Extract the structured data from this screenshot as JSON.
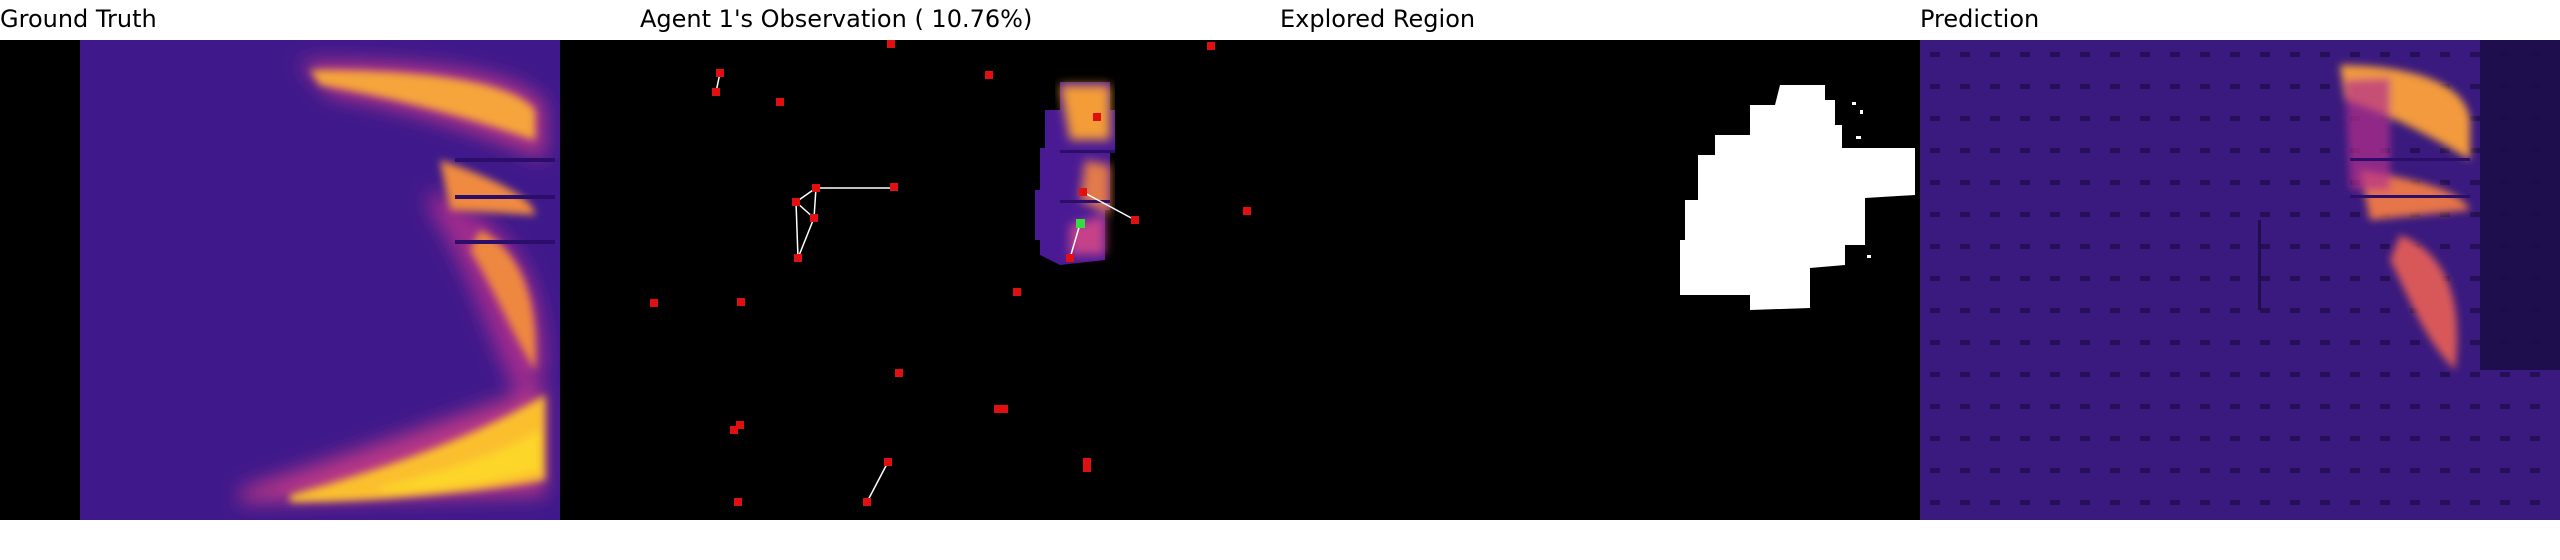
{
  "panels": {
    "ground_truth": {
      "title": "Ground Truth"
    },
    "observation": {
      "title": "Agent 1's Observation ( 10.76%)"
    },
    "explored": {
      "title": "Explored Region"
    },
    "prediction": {
      "title": "Prediction"
    }
  },
  "colors": {
    "background": "#000000",
    "map_low": "#3a1080",
    "map_mid": "#b52f8c",
    "map_high": "#fcce25",
    "agent_marker": "#e01010",
    "active_agent_marker": "#33dd44",
    "trajectory": "#ffffff",
    "explored_fill": "#ffffff"
  }
}
